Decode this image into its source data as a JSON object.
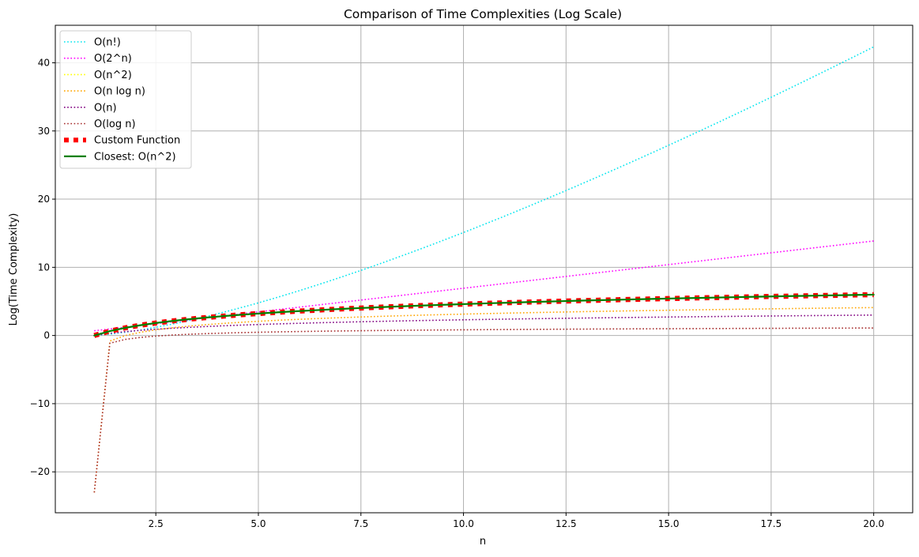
{
  "chart_data": {
    "type": "line",
    "title": "Comparison of Time Complexities (Log Scale)",
    "xlabel": "n",
    "ylabel": "Log(Time Complexity)",
    "xlim": [
      0.05,
      20.95
    ],
    "ylim": [
      -26.0,
      45.5
    ],
    "xticks": [
      2.5,
      5.0,
      7.5,
      10.0,
      12.5,
      15.0,
      17.5,
      20.0
    ],
    "xtick_labels": [
      "2.5",
      "5.0",
      "7.5",
      "10.0",
      "12.5",
      "15.0",
      "17.5",
      "20.0"
    ],
    "yticks": [
      -20,
      -10,
      0,
      10,
      20,
      30,
      40
    ],
    "ytick_labels": [
      "−20",
      "−10",
      "0",
      "10",
      "20",
      "30",
      "40"
    ],
    "grid": true,
    "legend_position": "upper-left",
    "colors": {
      "factorial": "#00e5ee",
      "exponential": "#ff00ff",
      "quadratic": "#ffff00",
      "linearithmic": "#ffa500",
      "linear": "#800080",
      "logarithmic": "#a52a2a",
      "custom": "#ff0000",
      "closest": "#008000",
      "grid": "#b0b0b0"
    },
    "x_samples": {
      "start": 1,
      "stop": 20,
      "count": 51
    },
    "series": [
      {
        "name": "O(n!)",
        "style": "dotted",
        "color_key": "factorial",
        "formula": "log(n!)",
        "anchor_values": {
          "x": [
            1,
            2.5,
            5,
            7.5,
            10,
            12.5,
            15,
            17.5,
            20
          ],
          "y": [
            0.0,
            1.3,
            4.8,
            9.6,
            15.1,
            21.1,
            27.9,
            34.9,
            42.3
          ]
        }
      },
      {
        "name": "O(2^n)",
        "style": "dotted",
        "color_key": "exponential",
        "formula": "n*log(2)",
        "anchor_values": {
          "x": [
            1,
            5,
            10,
            15,
            20
          ],
          "y": [
            0.69,
            3.47,
            6.93,
            10.4,
            13.86
          ]
        }
      },
      {
        "name": "O(n^2)",
        "style": "dotted",
        "color_key": "quadratic",
        "formula": "2*log(n)",
        "anchor_values": {
          "x": [
            1,
            5,
            10,
            15,
            20
          ],
          "y": [
            0.0,
            3.22,
            4.61,
            5.42,
            5.99
          ]
        }
      },
      {
        "name": "O(n log n)",
        "style": "dotted",
        "color_key": "linearithmic",
        "formula": "log(n*log(n))",
        "anchor_values": {
          "x": [
            1,
            2,
            5,
            10,
            15,
            20
          ],
          "y": [
            -23.0,
            -0.37,
            2.08,
            3.14,
            3.71,
            4.09
          ]
        }
      },
      {
        "name": "O(n)",
        "style": "dotted",
        "color_key": "linear",
        "formula": "log(n)",
        "anchor_values": {
          "x": [
            1,
            5,
            10,
            15,
            20
          ],
          "y": [
            0.0,
            1.61,
            2.3,
            2.71,
            3.0
          ]
        }
      },
      {
        "name": "O(log n)",
        "style": "dotted",
        "color_key": "logarithmic",
        "formula": "log(log(n))",
        "anchor_values": {
          "x": [
            1,
            2,
            5,
            10,
            15,
            20
          ],
          "y": [
            -23.0,
            -0.37,
            0.48,
            0.83,
            1.0,
            1.1
          ]
        }
      },
      {
        "name": "Custom Function",
        "style": "thick-dotted",
        "color_key": "custom",
        "formula": "2*log(n)",
        "anchor_values": {
          "x": [
            1,
            5,
            10,
            15,
            20
          ],
          "y": [
            0.0,
            3.22,
            4.61,
            5.42,
            5.99
          ]
        }
      },
      {
        "name": "Closest: O(n^2)",
        "style": "solid",
        "color_key": "closest",
        "formula": "2*log(n)",
        "anchor_values": {
          "x": [
            1,
            5,
            10,
            15,
            20
          ],
          "y": [
            0.0,
            3.22,
            4.61,
            5.42,
            5.99
          ]
        }
      }
    ]
  }
}
